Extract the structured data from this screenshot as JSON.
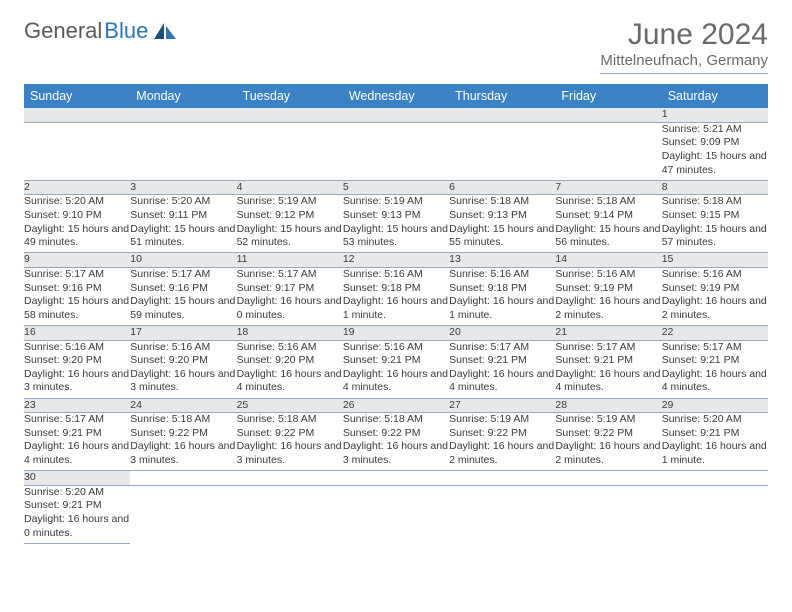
{
  "logo": {
    "text1": "General",
    "text2": "Blue"
  },
  "title": {
    "month": "June 2024",
    "location": "Mittelneufnach, Germany"
  },
  "colors": {
    "header_bg": "#3b82c4",
    "header_text": "#ffffff",
    "daynum_bg": "#e8e8e8",
    "rule": "#8faad0",
    "body_text": "#3a3a3a",
    "title_text": "#6a6a6a"
  },
  "weekdays": [
    "Sunday",
    "Monday",
    "Tuesday",
    "Wednesday",
    "Thursday",
    "Friday",
    "Saturday"
  ],
  "weeks": [
    [
      null,
      null,
      null,
      null,
      null,
      null,
      {
        "d": "1",
        "sr": "Sunrise: 5:21 AM",
        "ss": "Sunset: 9:09 PM",
        "dl": "Daylight: 15 hours and 47 minutes."
      }
    ],
    [
      {
        "d": "2",
        "sr": "Sunrise: 5:20 AM",
        "ss": "Sunset: 9:10 PM",
        "dl": "Daylight: 15 hours and 49 minutes."
      },
      {
        "d": "3",
        "sr": "Sunrise: 5:20 AM",
        "ss": "Sunset: 9:11 PM",
        "dl": "Daylight: 15 hours and 51 minutes."
      },
      {
        "d": "4",
        "sr": "Sunrise: 5:19 AM",
        "ss": "Sunset: 9:12 PM",
        "dl": "Daylight: 15 hours and 52 minutes."
      },
      {
        "d": "5",
        "sr": "Sunrise: 5:19 AM",
        "ss": "Sunset: 9:13 PM",
        "dl": "Daylight: 15 hours and 53 minutes."
      },
      {
        "d": "6",
        "sr": "Sunrise: 5:18 AM",
        "ss": "Sunset: 9:13 PM",
        "dl": "Daylight: 15 hours and 55 minutes."
      },
      {
        "d": "7",
        "sr": "Sunrise: 5:18 AM",
        "ss": "Sunset: 9:14 PM",
        "dl": "Daylight: 15 hours and 56 minutes."
      },
      {
        "d": "8",
        "sr": "Sunrise: 5:18 AM",
        "ss": "Sunset: 9:15 PM",
        "dl": "Daylight: 15 hours and 57 minutes."
      }
    ],
    [
      {
        "d": "9",
        "sr": "Sunrise: 5:17 AM",
        "ss": "Sunset: 9:16 PM",
        "dl": "Daylight: 15 hours and 58 minutes."
      },
      {
        "d": "10",
        "sr": "Sunrise: 5:17 AM",
        "ss": "Sunset: 9:16 PM",
        "dl": "Daylight: 15 hours and 59 minutes."
      },
      {
        "d": "11",
        "sr": "Sunrise: 5:17 AM",
        "ss": "Sunset: 9:17 PM",
        "dl": "Daylight: 16 hours and 0 minutes."
      },
      {
        "d": "12",
        "sr": "Sunrise: 5:16 AM",
        "ss": "Sunset: 9:18 PM",
        "dl": "Daylight: 16 hours and 1 minute."
      },
      {
        "d": "13",
        "sr": "Sunrise: 5:16 AM",
        "ss": "Sunset: 9:18 PM",
        "dl": "Daylight: 16 hours and 1 minute."
      },
      {
        "d": "14",
        "sr": "Sunrise: 5:16 AM",
        "ss": "Sunset: 9:19 PM",
        "dl": "Daylight: 16 hours and 2 minutes."
      },
      {
        "d": "15",
        "sr": "Sunrise: 5:16 AM",
        "ss": "Sunset: 9:19 PM",
        "dl": "Daylight: 16 hours and 2 minutes."
      }
    ],
    [
      {
        "d": "16",
        "sr": "Sunrise: 5:16 AM",
        "ss": "Sunset: 9:20 PM",
        "dl": "Daylight: 16 hours and 3 minutes."
      },
      {
        "d": "17",
        "sr": "Sunrise: 5:16 AM",
        "ss": "Sunset: 9:20 PM",
        "dl": "Daylight: 16 hours and 3 minutes."
      },
      {
        "d": "18",
        "sr": "Sunrise: 5:16 AM",
        "ss": "Sunset: 9:20 PM",
        "dl": "Daylight: 16 hours and 4 minutes."
      },
      {
        "d": "19",
        "sr": "Sunrise: 5:16 AM",
        "ss": "Sunset: 9:21 PM",
        "dl": "Daylight: 16 hours and 4 minutes."
      },
      {
        "d": "20",
        "sr": "Sunrise: 5:17 AM",
        "ss": "Sunset: 9:21 PM",
        "dl": "Daylight: 16 hours and 4 minutes."
      },
      {
        "d": "21",
        "sr": "Sunrise: 5:17 AM",
        "ss": "Sunset: 9:21 PM",
        "dl": "Daylight: 16 hours and 4 minutes."
      },
      {
        "d": "22",
        "sr": "Sunrise: 5:17 AM",
        "ss": "Sunset: 9:21 PM",
        "dl": "Daylight: 16 hours and 4 minutes."
      }
    ],
    [
      {
        "d": "23",
        "sr": "Sunrise: 5:17 AM",
        "ss": "Sunset: 9:21 PM",
        "dl": "Daylight: 16 hours and 4 minutes."
      },
      {
        "d": "24",
        "sr": "Sunrise: 5:18 AM",
        "ss": "Sunset: 9:22 PM",
        "dl": "Daylight: 16 hours and 3 minutes."
      },
      {
        "d": "25",
        "sr": "Sunrise: 5:18 AM",
        "ss": "Sunset: 9:22 PM",
        "dl": "Daylight: 16 hours and 3 minutes."
      },
      {
        "d": "26",
        "sr": "Sunrise: 5:18 AM",
        "ss": "Sunset: 9:22 PM",
        "dl": "Daylight: 16 hours and 3 minutes."
      },
      {
        "d": "27",
        "sr": "Sunrise: 5:19 AM",
        "ss": "Sunset: 9:22 PM",
        "dl": "Daylight: 16 hours and 2 minutes."
      },
      {
        "d": "28",
        "sr": "Sunrise: 5:19 AM",
        "ss": "Sunset: 9:22 PM",
        "dl": "Daylight: 16 hours and 2 minutes."
      },
      {
        "d": "29",
        "sr": "Sunrise: 5:20 AM",
        "ss": "Sunset: 9:21 PM",
        "dl": "Daylight: 16 hours and 1 minute."
      }
    ],
    [
      {
        "d": "30",
        "sr": "Sunrise: 5:20 AM",
        "ss": "Sunset: 9:21 PM",
        "dl": "Daylight: 16 hours and 0 minutes."
      },
      null,
      null,
      null,
      null,
      null,
      null
    ]
  ]
}
